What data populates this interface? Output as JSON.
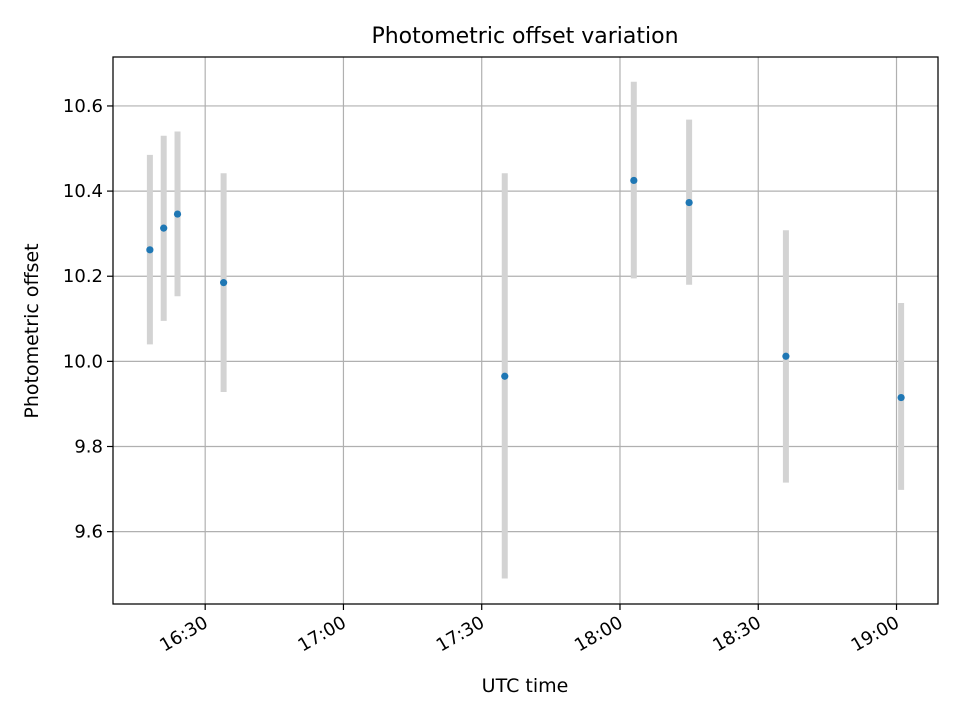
{
  "chart_data": {
    "type": "scatter",
    "title": "Photometric offset variation",
    "xlabel": "UTC time",
    "ylabel": "Photometric offset",
    "grid": true,
    "x_ticks": [
      "16:30",
      "17:00",
      "17:30",
      "18:00",
      "18:30",
      "19:00"
    ],
    "x_tick_minutes": [
      990,
      1020,
      1050,
      1080,
      1110,
      1140
    ],
    "xlim": [
      "16:10",
      "19:09"
    ],
    "y_ticks": [
      "9.6",
      "9.8",
      "10.0",
      "10.2",
      "10.4",
      "10.6"
    ],
    "ylim": [
      9.43,
      10.715
    ],
    "colors": {
      "point": "#1f77b4",
      "errorbar": "#d3d3d3",
      "grid": "#b0b0b0",
      "frame": "#000000"
    },
    "series": [
      {
        "points": [
          {
            "x": "16:18",
            "y": 10.262,
            "ylow": 10.04,
            "yhigh": 10.485
          },
          {
            "x": "16:21",
            "y": 10.313,
            "ylow": 10.095,
            "yhigh": 10.53
          },
          {
            "x": "16:24",
            "y": 10.346,
            "ylow": 10.153,
            "yhigh": 10.54
          },
          {
            "x": "16:34",
            "y": 10.185,
            "ylow": 9.928,
            "yhigh": 10.442
          },
          {
            "x": "17:35",
            "y": 9.965,
            "ylow": 9.49,
            "yhigh": 10.442
          },
          {
            "x": "18:03",
            "y": 10.425,
            "ylow": 10.195,
            "yhigh": 10.657
          },
          {
            "x": "18:15",
            "y": 10.373,
            "ylow": 10.18,
            "yhigh": 10.568
          },
          {
            "x": "18:36",
            "y": 10.012,
            "ylow": 9.715,
            "yhigh": 10.308
          },
          {
            "x": "19:01",
            "y": 9.915,
            "ylow": 9.698,
            "yhigh": 10.137
          }
        ]
      }
    ]
  }
}
